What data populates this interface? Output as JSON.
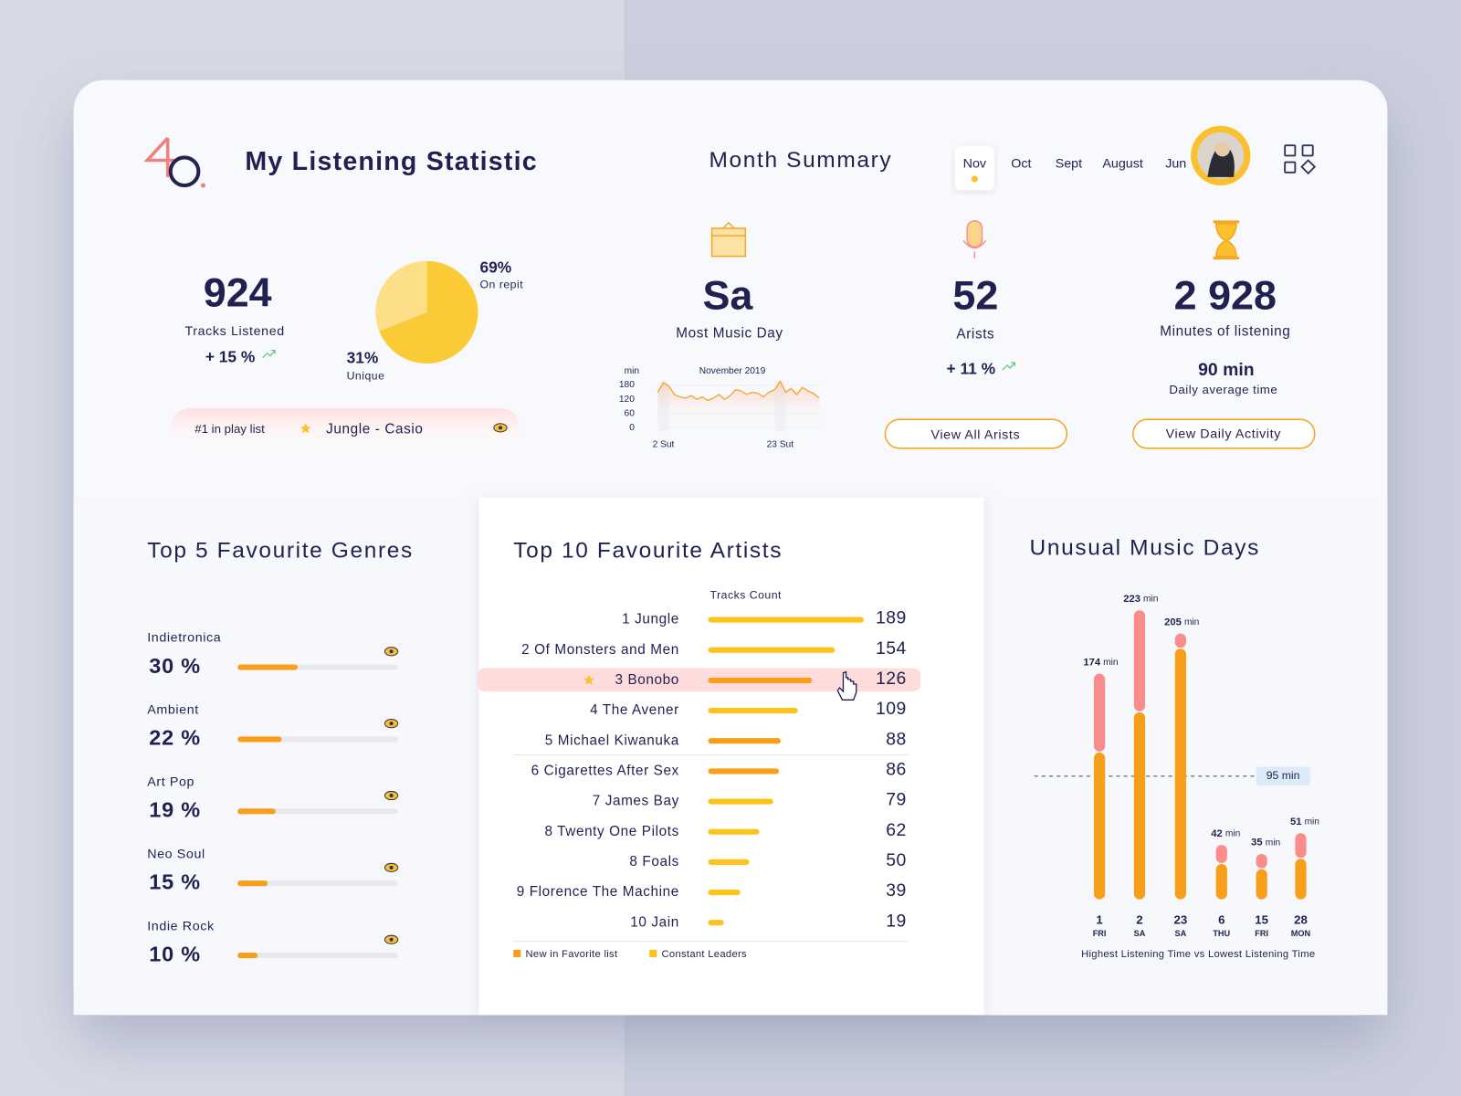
{
  "header": {
    "title": "My Listening Statistic"
  },
  "month_summary": {
    "title": "Month Summary",
    "months": [
      "Nov",
      "Oct",
      "Sept",
      "August",
      "Jun"
    ]
  },
  "tracks": {
    "value": 924,
    "label": "Tracks Listened",
    "change": "+ 15 %"
  },
  "repeat_chart": {
    "type": "pie",
    "values": [
      69,
      31
    ],
    "value_labels": [
      "69%",
      "31%"
    ],
    "labels": [
      "On repit",
      "Unique"
    ],
    "colors": [
      "#fbcb37",
      "#fcdf87"
    ]
  },
  "top_track": {
    "label": "#1 in play list",
    "name": "Jungle - Casio"
  },
  "most_music_day": {
    "value": "Sa",
    "label": "Most Music Day"
  },
  "daily_chart": {
    "type": "line",
    "title": "November 2019",
    "ylabel": "min",
    "x": [
      1,
      2,
      3,
      4,
      5,
      6,
      7,
      8,
      9,
      10,
      11,
      12,
      13,
      14,
      15,
      16,
      17,
      18,
      19,
      20,
      21,
      22,
      23,
      24,
      25,
      26,
      27,
      28,
      29,
      30
    ],
    "values": [
      150,
      190,
      175,
      140,
      130,
      125,
      135,
      120,
      130,
      115,
      125,
      140,
      120,
      135,
      160,
      155,
      140,
      150,
      145,
      130,
      150,
      160,
      195,
      150,
      165,
      140,
      170,
      155,
      145,
      125
    ],
    "xlim": [
      1,
      30
    ],
    "xticks": [
      {
        "value": 2,
        "label": "2 Sut"
      },
      {
        "value": 23,
        "label": "23 Sut"
      }
    ],
    "ylim": [
      0,
      200
    ],
    "yticks": [
      0,
      60,
      120,
      180
    ],
    "color": "#f5a623"
  },
  "artists_summary": {
    "value": 52,
    "label": "Arists",
    "change": "+ 11 %",
    "button": "View All Arists"
  },
  "minutes": {
    "value": "2 928",
    "label": "Minutes of listening",
    "average": "90 min",
    "average_label": "Daily average time",
    "button": "View Daily Activity"
  },
  "genres": {
    "type": "bar",
    "title": "Top 5 Favourite Genres",
    "categories": [
      "Indietronica",
      "Ambient",
      "Art Pop",
      "Neo Soul",
      "Indie  Rock"
    ],
    "values": [
      30,
      22,
      19,
      15,
      10
    ],
    "value_labels": [
      "30 %",
      "22 %",
      "19 %",
      "15 %",
      "10 %"
    ],
    "xlim": [
      0,
      80
    ],
    "color": "#f79e1b"
  },
  "artists": {
    "type": "bar",
    "title": "Top 10 Favourite Artists",
    "xlabel": "Tracks Count",
    "categories": [
      "1 Jungle",
      "2 Of Monsters and Men",
      "3 Bonobo",
      "4 The Avener",
      "5 Michael Kiwanuka",
      "6 Cigarettes After Sex",
      "7 James Bay",
      "8 Twenty One Pilots",
      "8 Foals",
      "9 Florence The Machine",
      "10 Jain"
    ],
    "values": [
      189,
      154,
      126,
      109,
      88,
      86,
      79,
      62,
      50,
      39,
      19
    ],
    "colors": [
      "#fcc419",
      "#fcc419",
      "#f79e1b",
      "#fcc419",
      "#f79e1b",
      "#f79e1b",
      "#fcc419",
      "#fcc419",
      "#fcc419",
      "#fcc419",
      "#fcc419"
    ],
    "xlim": [
      0,
      189
    ],
    "legend": [
      {
        "name": "New in Favorite list",
        "color": "#f79e1b"
      },
      {
        "name": "Constant Leaders",
        "color": "#fcc419"
      }
    ]
  },
  "unusual_days": {
    "type": "bar",
    "title": "Unusual Music Days",
    "categories": [
      "1",
      "2",
      "23",
      "6",
      "15",
      "28"
    ],
    "weekdays": [
      "FRI",
      "SA",
      "SA",
      "THU",
      "FRI",
      "MON"
    ],
    "series": [
      {
        "color": "#f79e1b",
        "values": [
          114,
          145,
          194,
          28,
          24,
          32
        ]
      },
      {
        "color": "#fa8c8c",
        "values": [
          60,
          78,
          11,
          14,
          11,
          19
        ]
      }
    ],
    "totals": [
      174,
      223,
      205,
      42,
      35,
      51
    ],
    "total_unit": "min",
    "reference": {
      "value": 95,
      "label": "95 min"
    },
    "ylim": [
      0,
      230
    ],
    "caption": "Highest Listening Time vs Lowest Listening Time"
  }
}
